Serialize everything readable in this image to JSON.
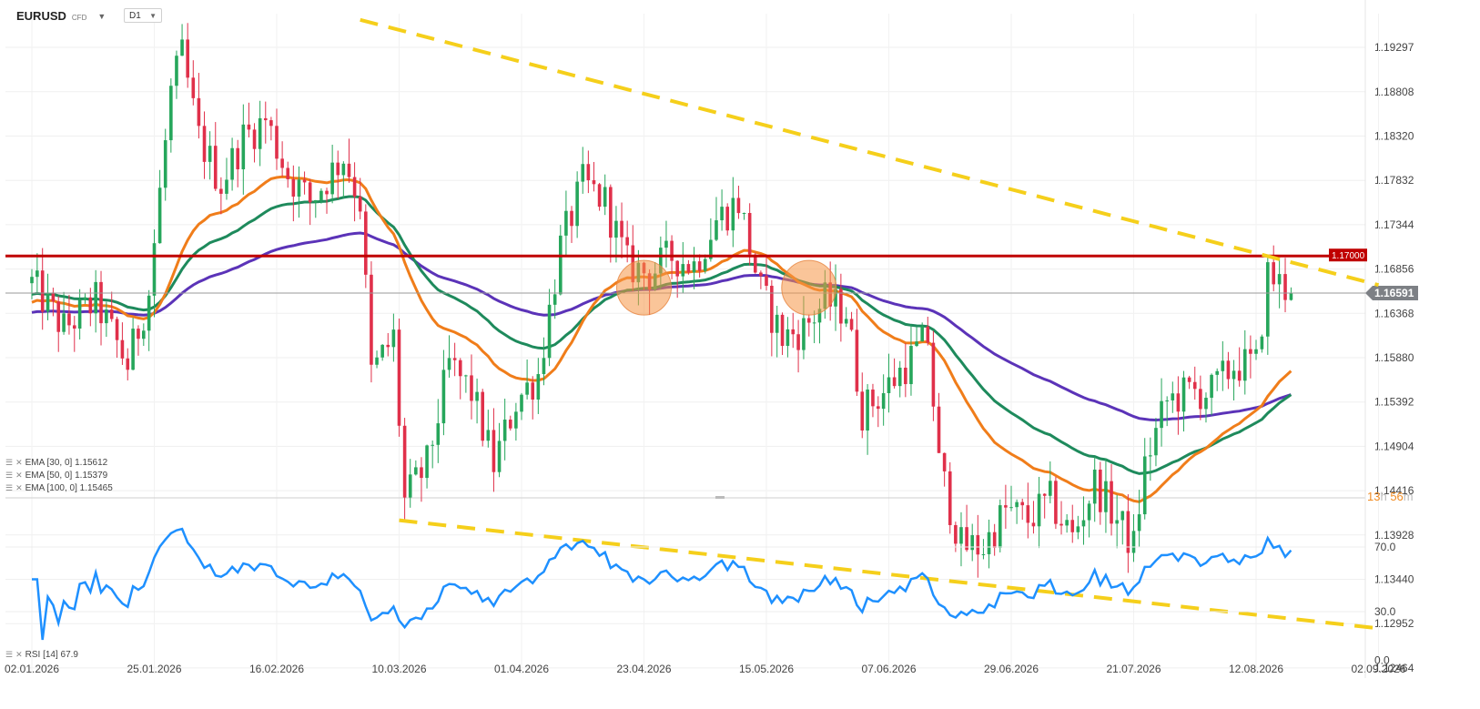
{
  "header": {
    "symbol": "EURUSD",
    "symbol_sub": "CFD",
    "timeframe": "D1"
  },
  "indicators": [
    {
      "label": "EMA [30, 0] 1.15612",
      "color": "#f07d1a"
    },
    {
      "label": "EMA [50, 0] 1.15379",
      "color": "#1e8a5c"
    },
    {
      "label": "EMA [100, 0] 1.15465",
      "color": "#5b33b8"
    }
  ],
  "rsi_label": "RSI [14] 67.9",
  "countdown": {
    "hours": "13",
    "hours_unit": "h",
    "minutes": "56",
    "minutes_unit": "m"
  },
  "colors": {
    "up": "#26a65b",
    "down": "#e0304a",
    "trend": "#f5cf1b",
    "resistance": "#c00000",
    "rsi": "#1e90ff"
  },
  "chart_data": {
    "type": "candlestick",
    "price_axis": {
      "ticks": [
        "1.19297",
        "1.18808",
        "1.18320",
        "1.17832",
        "1.17344",
        "1.16856",
        "1.16368",
        "1.15880",
        "1.15392",
        "1.14904",
        "1.14416",
        "1.13928",
        "1.13440",
        "1.12952",
        "1.12464"
      ]
    },
    "date_axis": {
      "ticks": [
        "02.01.2026",
        "25.01.2026",
        "16.02.2026",
        "10.03.2026",
        "01.04.2026",
        "23.04.2026",
        "15.05.2026",
        "07.06.2026",
        "29.06.2026",
        "21.07.2026",
        "12.08.2026",
        "02.09.2026"
      ]
    },
    "resistance": {
      "value": 1.17,
      "label": "1.17000"
    },
    "last_price": {
      "value": 1.16591,
      "label": "1.16591"
    },
    "trendlines": [
      {
        "name": "upper",
        "points": [
          [
            "03.03.2026",
            1.196
          ],
          [
            "02.09.2026",
            1.1668
          ]
        ]
      },
      {
        "name": "lower",
        "points": [
          [
            "10.03.2026",
            1.1409
          ],
          [
            "02.09.2026",
            1.129
          ]
        ]
      }
    ],
    "highlights": [
      "23.04.2026",
      "23.05.2026"
    ],
    "rsi": {
      "period": 14,
      "value": 67.9,
      "ticks": [
        "70.0",
        "30.0",
        "0.0"
      ]
    },
    "close_path": [
      [
        "02.01.2026",
        1.167
      ],
      [
        "08.01.2026",
        1.162
      ],
      [
        "14.01.2026",
        1.165
      ],
      [
        "20.01.2026",
        1.158
      ],
      [
        "24.01.2026",
        1.166
      ],
      [
        "28.01.2026",
        1.188
      ],
      [
        "30.01.2026",
        1.192
      ],
      [
        "02.02.2026",
        1.183
      ],
      [
        "06.02.2026",
        1.178
      ],
      [
        "10.02.2026",
        1.183
      ],
      [
        "14.02.2026",
        1.185
      ],
      [
        "18.02.2026",
        1.179
      ],
      [
        "22.02.2026",
        1.176
      ],
      [
        "28.02.2026",
        1.181
      ],
      [
        "03.03.2026",
        1.176
      ],
      [
        "05.03.2026",
        1.157
      ],
      [
        "09.03.2026",
        1.161
      ],
      [
        "11.03.2026",
        1.143
      ],
      [
        "15.03.2026",
        1.147
      ],
      [
        "19.03.2026",
        1.158
      ],
      [
        "23.03.2026",
        1.155
      ],
      [
        "27.03.2026",
        1.147
      ],
      [
        "31.03.2026",
        1.154
      ],
      [
        "04.04.2026",
        1.157
      ],
      [
        "08.04.2026",
        1.171
      ],
      [
        "12.04.2026",
        1.178
      ],
      [
        "16.04.2026",
        1.176
      ],
      [
        "20.04.2026",
        1.169
      ],
      [
        "24.04.2026",
        1.168
      ],
      [
        "28.04.2026",
        1.17
      ],
      [
        "02.05.2026",
        1.169
      ],
      [
        "06.05.2026",
        1.174
      ],
      [
        "10.05.2026",
        1.176
      ],
      [
        "14.05.2026",
        1.166
      ],
      [
        "18.05.2026",
        1.161
      ],
      [
        "22.05.2026",
        1.162
      ],
      [
        "26.05.2026",
        1.165
      ],
      [
        "30.05.2026",
        1.164
      ],
      [
        "02.06.2026",
        1.153
      ],
      [
        "06.06.2026",
        1.155
      ],
      [
        "10.06.2026",
        1.158
      ],
      [
        "14.06.2026",
        1.161
      ],
      [
        "16.06.2026",
        1.147
      ],
      [
        "20.06.2026",
        1.138
      ],
      [
        "24.06.2026",
        1.138
      ],
      [
        "28.06.2026",
        1.142
      ],
      [
        "02.07.2026",
        1.141
      ],
      [
        "06.07.2026",
        1.143
      ],
      [
        "10.07.2026",
        1.139
      ],
      [
        "14.07.2026",
        1.145
      ],
      [
        "18.07.2026",
        1.141
      ],
      [
        "21.07.2026",
        1.138
      ],
      [
        "23.07.2026",
        1.147
      ],
      [
        "27.07.2026",
        1.154
      ],
      [
        "31.07.2026",
        1.155
      ],
      [
        "04.08.2026",
        1.155
      ],
      [
        "08.08.2026",
        1.158
      ],
      [
        "12.08.2026",
        1.158
      ],
      [
        "14.08.2026",
        1.168
      ],
      [
        "18.08.2026",
        1.1659
      ]
    ]
  }
}
